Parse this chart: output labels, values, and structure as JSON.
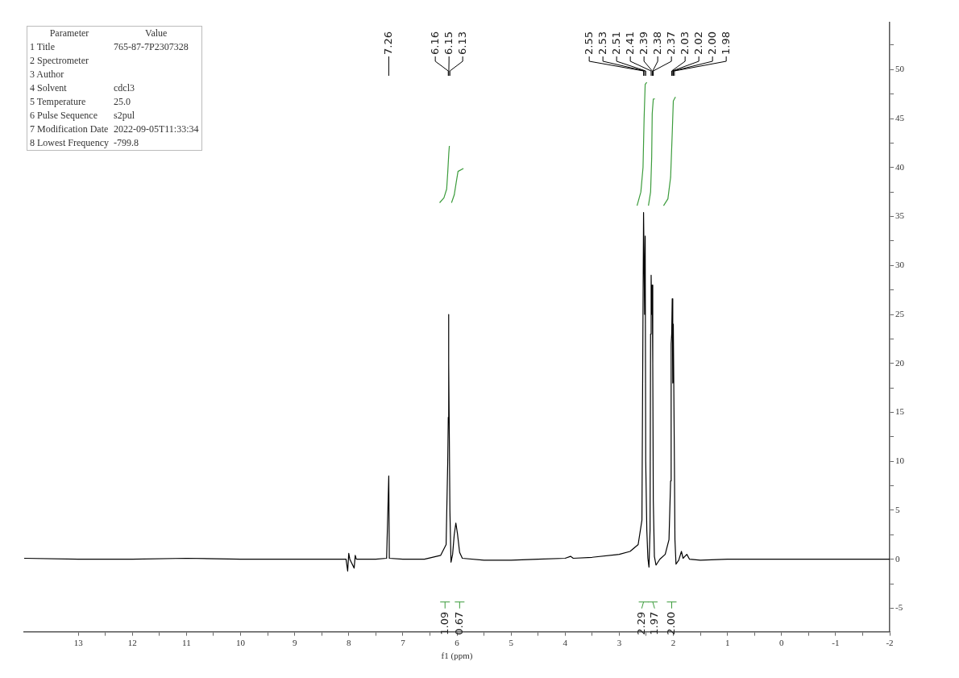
{
  "chart_data": {
    "type": "line",
    "xlabel": "f1 (ppm)",
    "xlim": [
      14,
      -2
    ],
    "ylim": [
      -7.4,
      54.8
    ],
    "xticks": [
      13,
      {
        "value": 12.5,
        "label": null
      },
      12,
      {
        "value": 11.5,
        "label": null
      },
      11,
      {
        "value": 10.5,
        "label": null
      },
      10,
      {
        "value": 9.5,
        "label": null
      },
      9,
      {
        "value": 8.5,
        "label": null
      },
      8,
      {
        "value": 7.5,
        "label": null
      },
      7,
      {
        "value": 6.5,
        "label": null
      },
      6,
      {
        "value": 5.5,
        "label": null
      },
      5,
      {
        "value": 4.5,
        "label": null
      },
      4,
      {
        "value": 3.5,
        "label": null
      },
      3,
      {
        "value": 2.5,
        "label": null
      },
      2,
      {
        "value": 1.5,
        "label": null
      },
      1,
      {
        "value": 0.5,
        "label": null
      },
      0,
      {
        "value": -0.5,
        "label": null
      },
      -1,
      {
        "value": -1.5,
        "label": null
      },
      -2
    ],
    "yticks": [
      -5,
      {
        "value": -2.5,
        "label": null
      },
      0,
      {
        "value": 2.5,
        "label": null
      },
      5,
      {
        "value": 7.5,
        "label": null
      },
      10,
      {
        "value": 12.5,
        "label": null
      },
      15,
      {
        "value": 17.5,
        "label": null
      },
      20,
      {
        "value": 22.5,
        "label": null
      },
      25,
      {
        "value": 27.5,
        "label": null
      },
      30,
      {
        "value": 32.5,
        "label": null
      },
      35,
      {
        "value": 37.5,
        "label": null
      },
      40,
      {
        "value": 42.5,
        "label": null
      },
      45,
      {
        "value": 47.5,
        "label": null
      },
      50,
      {
        "value": 52.5,
        "label": null
      }
    ],
    "grid": false,
    "legend": false,
    "marker": "none",
    "line_style": "solid",
    "series": [
      {
        "color": "#000000",
        "x": [
          14,
          13,
          12,
          11,
          10,
          9,
          8.6,
          8.05,
          8.02,
          8.0,
          7.98,
          7.9,
          7.88,
          7.86,
          7.5,
          7.3,
          7.26,
          7.25,
          7.0,
          6.6,
          6.3,
          6.2,
          6.17,
          6.16,
          6.155,
          6.15,
          6.14,
          6.13,
          6.11,
          6.08,
          6.05,
          6.02,
          5.99,
          5.95,
          5.9,
          5.5,
          5,
          4.5,
          4,
          3.9,
          3.85,
          3.5,
          3,
          2.8,
          2.65,
          2.58,
          2.56,
          2.55,
          2.53,
          2.52,
          2.51,
          2.49,
          2.47,
          2.45,
          2.43,
          2.42,
          2.41,
          2.4,
          2.39,
          2.38,
          2.37,
          2.35,
          2.32,
          2.25,
          2.15,
          2.08,
          2.05,
          2.04,
          2.03,
          2.02,
          2.01,
          2.0,
          1.98,
          1.97,
          1.95,
          1.9,
          1.85,
          1.82,
          1.75,
          1.7,
          1.5,
          1,
          0,
          -1,
          -2
        ],
        "values": [
          0.1,
          0,
          0,
          0.1,
          0,
          0,
          0,
          0,
          -1.2,
          0.6,
          0,
          -0.9,
          0.4,
          0,
          0,
          0.1,
          8.5,
          0.1,
          0,
          0,
          0.4,
          1.5,
          10,
          14.5,
          25,
          20,
          12,
          5,
          -0.3,
          0.5,
          2.5,
          3.7,
          2.6,
          0.7,
          0.1,
          -0.1,
          -0.1,
          0,
          0.1,
          0.3,
          0.1,
          0.2,
          0.5,
          0.8,
          1.5,
          4,
          25.5,
          35.4,
          25,
          33,
          10,
          3,
          0.1,
          -0.8,
          3,
          23,
          29,
          25,
          28,
          20,
          6,
          0.3,
          -0.6,
          0,
          0.5,
          2,
          8,
          22,
          23,
          26.6,
          18,
          24,
          10,
          2,
          -0.5,
          -0.1,
          0.8,
          0.1,
          0.5,
          0,
          -0.1,
          0,
          0,
          0,
          0
        ]
      },
      {
        "color": "#3c9c3c",
        "x": [
          6.32,
          6.24,
          6.19,
          6.17,
          6.15,
          6.14
        ],
        "values": [
          36.4,
          36.9,
          37.8,
          39.5,
          41.5,
          42.2
        ]
      },
      {
        "color": "#3c9c3c",
        "x": [
          6.1,
          6.05,
          6.01,
          5.98,
          5.88
        ],
        "values": [
          36.4,
          37.2,
          38.6,
          39.6,
          39.9
        ]
      },
      {
        "color": "#3c9c3c",
        "x": [
          2.67,
          2.6,
          2.56,
          2.54,
          2.52,
          2.49
        ],
        "values": [
          36.1,
          37.5,
          40,
          45,
          48.5,
          48.7
        ]
      },
      {
        "color": "#3c9c3c",
        "x": [
          2.46,
          2.42,
          2.4,
          2.39,
          2.37,
          2.34
        ],
        "values": [
          36.1,
          37.5,
          41,
          45.5,
          47,
          47
        ]
      },
      {
        "color": "#3c9c3c",
        "x": [
          2.18,
          2.1,
          2.05,
          2.02,
          2.0,
          1.96
        ],
        "values": [
          36.1,
          36.8,
          39,
          43.5,
          46.8,
          47.2
        ]
      }
    ],
    "annotations": [
      "Parameter\tValue",
      "1 Title\t765-87-7P2307328",
      "2 Spectrometer",
      "3 Author",
      "4 Solvent\tcdcl3",
      "5 Temperature\t25.0",
      "6 Pulse Sequence\ts2pul",
      "7 Modification Date\t2022-09-05T11:33:34",
      "8 Lowest Frequency\t-799.8",
      {
        "text": "7.26",
        "x": 7.26
      },
      {
        "text": "6.16",
        "x": 6.16
      },
      {
        "text": "6.15",
        "x": 6.15
      },
      {
        "text": "6.13",
        "x": 6.13
      },
      {
        "text": "2.55",
        "x": 2.55
      },
      {
        "text": "2.53",
        "x": 2.53
      },
      {
        "text": "2.51",
        "x": 2.51
      },
      {
        "text": "2.41",
        "x": 2.41
      },
      {
        "text": "2.39",
        "x": 2.39
      },
      {
        "text": "2.38",
        "x": 2.38
      },
      {
        "text": "2.37",
        "x": 2.37
      },
      {
        "text": "2.03",
        "x": 2.03
      },
      {
        "text": "2.02",
        "x": 2.02
      },
      {
        "text": "2.00",
        "x": 2.0
      },
      {
        "text": "1.98",
        "x": 1.98
      },
      {
        "text": "1.09",
        "x": 6.22
      },
      {
        "text": "0.67",
        "x": 5.95
      },
      {
        "text": "2.29",
        "x": 2.55
      },
      {
        "text": "1.97",
        "x": 2.38
      },
      {
        "text": "2.00",
        "x": 2.03
      }
    ]
  }
}
